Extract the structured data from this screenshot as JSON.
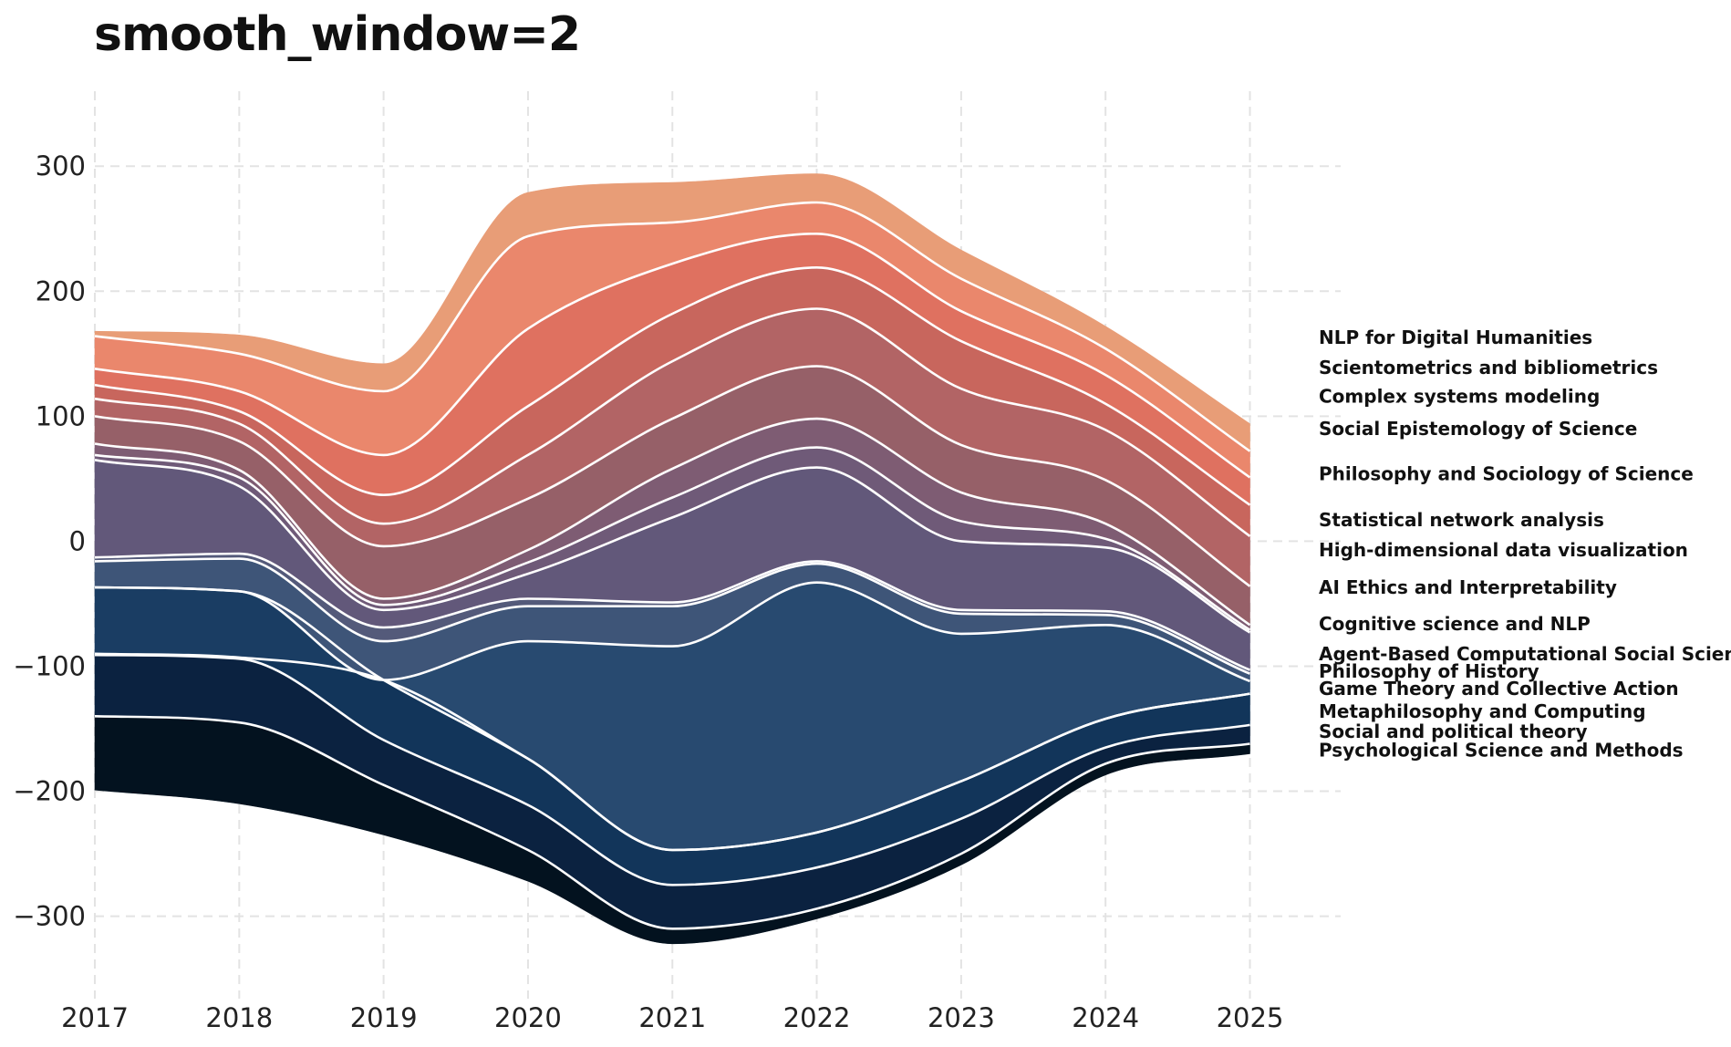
{
  "chart_data": {
    "type": "area",
    "title": "smooth_window=2",
    "xlabel": "",
    "ylabel": "",
    "x": [
      2017,
      2018,
      2019,
      2020,
      2021,
      2022,
      2023,
      2024,
      2025
    ],
    "ylim": [
      -355,
      360
    ],
    "xlim": [
      2017,
      2025.3
    ],
    "yticks": [
      300,
      200,
      100,
      0,
      -100,
      -200,
      -300
    ],
    "yticklabels": [
      "300",
      "200",
      "100",
      "0",
      "−100",
      "−200",
      "−300"
    ],
    "xticks": [
      2017,
      2018,
      2019,
      2020,
      2021,
      2022,
      2023,
      2024,
      2025
    ],
    "xticklabels": [
      "2017",
      "2018",
      "2019",
      "2020",
      "2021",
      "2022",
      "2023",
      "2024",
      "2025"
    ],
    "grid": true,
    "baseline": [
      -199,
      -210,
      -235,
      -272,
      -322,
      -302,
      -259,
      -187,
      -170
    ],
    "series": [
      {
        "name": "Psychological Science and Methods",
        "color": "#03121f",
        "values": [
          59,
          65,
          40,
          25,
          12,
          8,
          9,
          9,
          8
        ]
      },
      {
        "name": "Social and political theory",
        "color": "#0b2240",
        "values": [
          49,
          51,
          36,
          36,
          35,
          33,
          28,
          13,
          15
        ]
      },
      {
        "name": "Metaphilosophy and Computing",
        "color": "#12355a",
        "values": [
          1,
          1,
          48,
          37,
          28,
          28,
          30,
          23,
          25
        ]
      },
      {
        "name": "Game Theory and Collective Action",
        "color": "#1a3d63",
        "values": [
          53,
          53,
          0,
          0,
          0,
          0,
          0,
          0,
          0
        ]
      },
      {
        "name": "Philosophy of History",
        "color": "#284a70",
        "values": [
          0,
          0,
          0,
          94,
          163,
          200,
          118,
          75,
          10
        ]
      },
      {
        "name": "Agent-Based Computational Social Science",
        "color": "#3e5578",
        "values": [
          21,
          26,
          31,
          28,
          32,
          15,
          16,
          8,
          6
        ]
      },
      {
        "name": "Cognitive science and NLP",
        "color": "#545a7a",
        "values": [
          3,
          4,
          11,
          6,
          3,
          2,
          3,
          3,
          3
        ]
      },
      {
        "name": "AI Ethics and Interpretability",
        "color": "#62587a",
        "values": [
          78,
          54,
          14,
          20,
          68,
          75,
          55,
          51,
          30
        ]
      },
      {
        "name": "High-dimensional data visualization",
        "color": "#6f5a78",
        "values": [
          4,
          7,
          4,
          9,
          16,
          16,
          16,
          7,
          2
        ]
      },
      {
        "name": "Statistical network analysis",
        "color": "#7e5c73",
        "values": [
          9,
          6,
          5,
          10,
          23,
          23,
          23,
          12,
          4
        ]
      },
      {
        "name": "Philosophy and Sociology of Science",
        "color": "#966068",
        "values": [
          22,
          23,
          42,
          41,
          40,
          42,
          38,
          35,
          31
        ]
      },
      {
        "name": "Social Epistemology of Science",
        "color": "#b26465",
        "values": [
          14,
          14,
          18,
          35,
          46,
          46,
          45,
          40,
          40
        ]
      },
      {
        "name": "Complex systems modeling",
        "color": "#c8665d",
        "values": [
          11,
          10,
          23,
          39,
          38,
          33,
          38,
          21,
          25
        ]
      },
      {
        "name": "Scientometrics and bibliometrics",
        "color": "#df7160",
        "values": [
          13,
          16,
          32,
          62,
          40,
          27,
          24,
          23,
          22
        ]
      },
      {
        "name": "NLP for Digital Humanities",
        "color": "#ea876c",
        "values": [
          26,
          30,
          51,
          74,
          33,
          25,
          26,
          21,
          21
        ]
      },
      {
        "name": "",
        "color": "#e89d77",
        "values": [
          4,
          15,
          22,
          35,
          32,
          23,
          23,
          18,
          22
        ]
      }
    ],
    "legend": {
      "placement": "right",
      "labels": [
        "NLP for Digital Humanities",
        "Scientometrics and bibliometrics",
        "Complex systems modeling",
        "Social Epistemology of Science",
        "Philosophy and Sociology of Science",
        "Statistical network analysis",
        "High-dimensional data visualization",
        "AI Ethics and Interpretability",
        "Cognitive science and NLP",
        "Agent-Based Computational Social Science",
        "Philosophy of History",
        "Game Theory and Collective Action",
        "Metaphilosophy and Computing",
        "Social and political theory",
        "Psychological Science and Methods"
      ],
      "label_y": [
        163,
        139,
        116,
        90,
        54,
        17,
        -7,
        -37,
        -66,
        -90,
        -104,
        -118,
        -136,
        -152,
        -167
      ]
    }
  }
}
